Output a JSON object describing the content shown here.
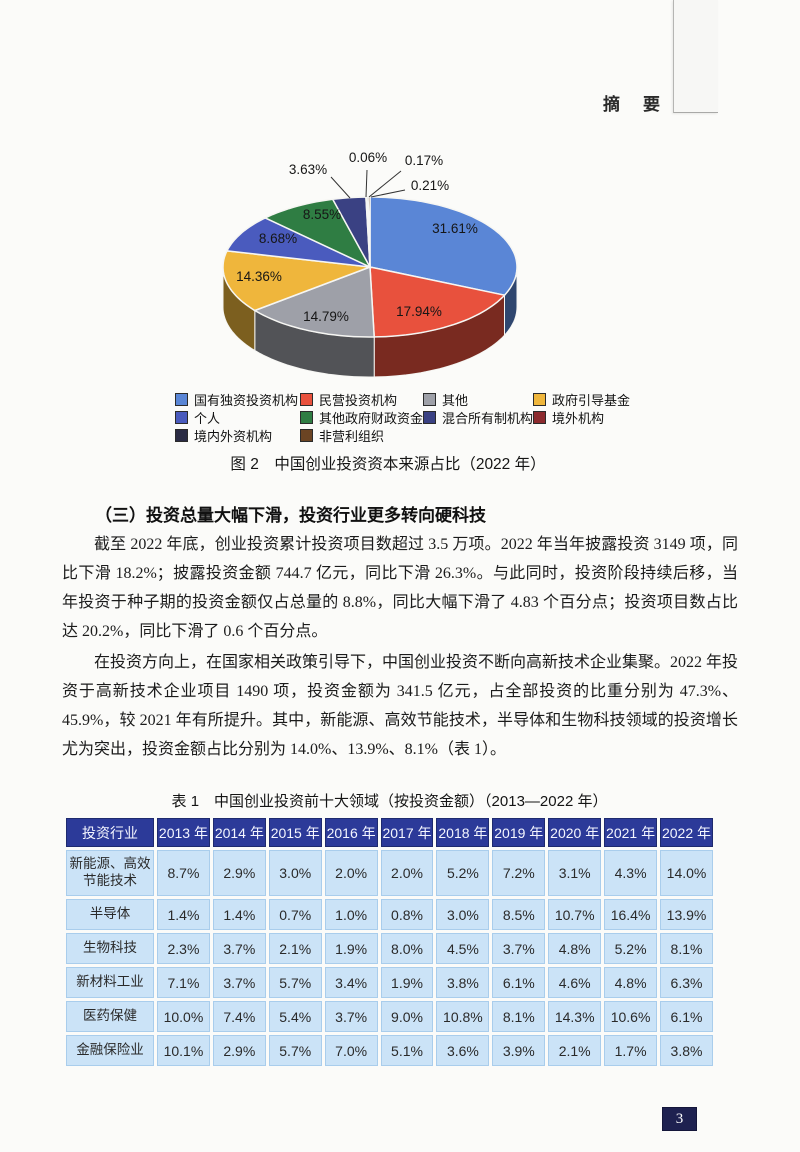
{
  "page": {
    "running_header": "摘　要",
    "number": "3"
  },
  "figure2": {
    "caption": "图 2　中国创业投资资本来源占比（2022 年）"
  },
  "section": {
    "heading": "（三）投资总量大幅下滑，投资行业更多转向硬科技",
    "para1": "截至 2022 年底，创业投资累计投资项目数超过 3.5 万项。2022 年当年披露投资 3149 项，同比下滑 18.2%；披露投资金额 744.7 亿元，同比下滑 26.3%。与此同时，投资阶段持续后移，当年投资于种子期的投资金额仅占总量的 8.8%，同比大幅下滑了 4.83 个百分点；投资项目数占比达 20.2%，同比下滑了 0.6 个百分点。",
    "para2": "在投资方向上，在国家相关政策引导下，中国创业投资不断向高新技术企业集聚。2022 年投资于高新技术企业项目 1490 项，投资金额为 341.5 亿元，占全部投资的比重分别为 47.3%、45.9%，较 2021 年有所提升。其中，新能源、高效节能技术，半导体和生物科技领域的投资增长尤为突出，投资金额占比分别为 14.0%、13.9%、8.1%（表 1）。"
  },
  "table1_title": "表 1　中国创业投资前十大领域（按投资金额）（2013—2022 年）",
  "colors": {
    "table_header_bg": "#2c3a99",
    "table_cell_bg": "#cbe3f7",
    "page_number_bg": "#1e2150"
  },
  "chart_data": [
    {
      "type": "pie",
      "style": "3d",
      "title": "中国创业投资资本来源占比（2022 年）",
      "unit": "%",
      "labels": [
        "国有独资投资机构",
        "民营投资机构",
        "其他",
        "政府引导基金",
        "个人",
        "其他政府财政资金",
        "混合所有制机构",
        "境外机构",
        "境内外资机构",
        "非营利组织"
      ],
      "values": [
        31.61,
        17.94,
        14.79,
        14.36,
        8.68,
        8.55,
        3.63,
        0.06,
        0.17,
        0.21
      ],
      "colors": [
        "#5a86d6",
        "#e8513d",
        "#9ea0a8",
        "#efb63c",
        "#4a5bbe",
        "#2f7d43",
        "#3a4183",
        "#8c2a2e",
        "#2a2b44",
        "#6b4423"
      ],
      "legend_position": "bottom"
    },
    {
      "type": "table",
      "title": "表 1　中国创业投资前十大领域（按投资金额）（2013—2022 年）",
      "unit": "%",
      "columns": [
        "投资行业",
        "2013 年",
        "2014 年",
        "2015 年",
        "2016 年",
        "2017 年",
        "2018 年",
        "2019 年",
        "2020 年",
        "2021 年",
        "2022 年"
      ],
      "rows": [
        {
          "label": "新能源、高效节能技术",
          "values": [
            8.7,
            2.9,
            3.0,
            2.0,
            2.0,
            5.2,
            7.2,
            3.1,
            4.3,
            14.0
          ]
        },
        {
          "label": "半导体",
          "values": [
            1.4,
            1.4,
            0.7,
            1.0,
            0.8,
            3.0,
            8.5,
            10.7,
            16.4,
            13.9
          ]
        },
        {
          "label": "生物科技",
          "values": [
            2.3,
            3.7,
            2.1,
            1.9,
            8.0,
            4.5,
            3.7,
            4.8,
            5.2,
            8.1
          ]
        },
        {
          "label": "新材料工业",
          "values": [
            7.1,
            3.7,
            5.7,
            3.4,
            1.9,
            3.8,
            6.1,
            4.6,
            4.8,
            6.3
          ]
        },
        {
          "label": "医药保健",
          "values": [
            10.0,
            7.4,
            5.4,
            3.7,
            9.0,
            10.8,
            8.1,
            14.3,
            10.6,
            6.1
          ]
        },
        {
          "label": "金融保险业",
          "values": [
            10.1,
            2.9,
            5.7,
            7.0,
            5.1,
            3.6,
            3.9,
            2.1,
            1.7,
            3.8
          ]
        }
      ]
    }
  ]
}
